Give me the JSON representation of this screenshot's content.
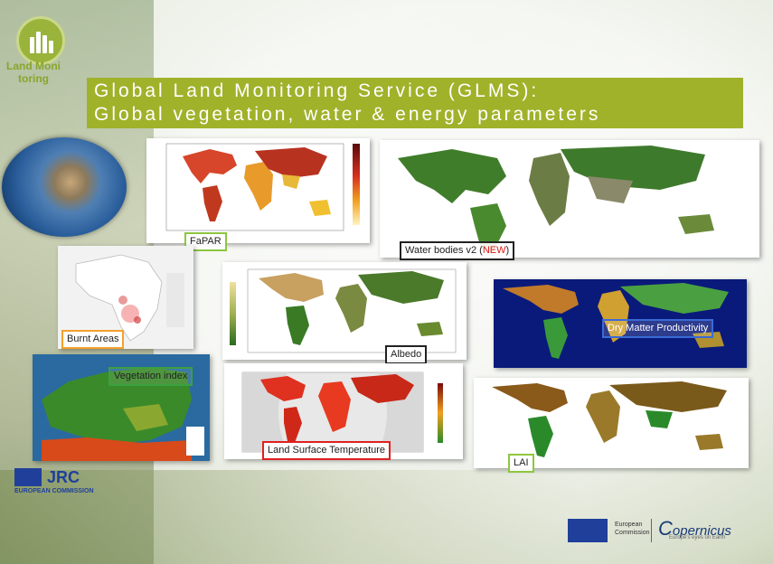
{
  "logo": {
    "text": "Land Monitoring",
    "icon": "wheat-bars-icon",
    "color": "#8aa52a"
  },
  "title": {
    "line1": "Global Land Monitoring Service (GLMS):",
    "line2": "Global vegetation, water & energy parameters",
    "bar_color": "#9fb22a"
  },
  "panels": {
    "fapar": {
      "label": "FaPAR"
    },
    "water_bodies": {
      "label": "Water bodies v2 ",
      "badge": "NEW",
      "paren_open": "(",
      "paren_close": ")"
    },
    "burnt_areas": {
      "label": "Burnt Areas"
    },
    "albedo": {
      "label": "Albedo"
    },
    "dmp": {
      "label": "Dry Matter Productivity"
    },
    "vegetation_index": {
      "label": "Vegetation index"
    },
    "lst": {
      "label": "Land Surface Temperature"
    },
    "lai": {
      "label": "LAI"
    }
  },
  "footer": {
    "jrc": "JRC",
    "european_commission": "EUROPEAN COMMISSION",
    "ec_small_line1": "European",
    "ec_small_line2": "Commission",
    "copernicus": "opernicus",
    "copernicus_c": "C",
    "copernicus_tagline": "Europe's eyes on Earth"
  },
  "colors": {
    "label_green": "#8dc63f",
    "label_orange": "#f3a12c",
    "label_red": "#e02020",
    "label_blue": "#3a6bd6",
    "label_black": "#222222"
  }
}
